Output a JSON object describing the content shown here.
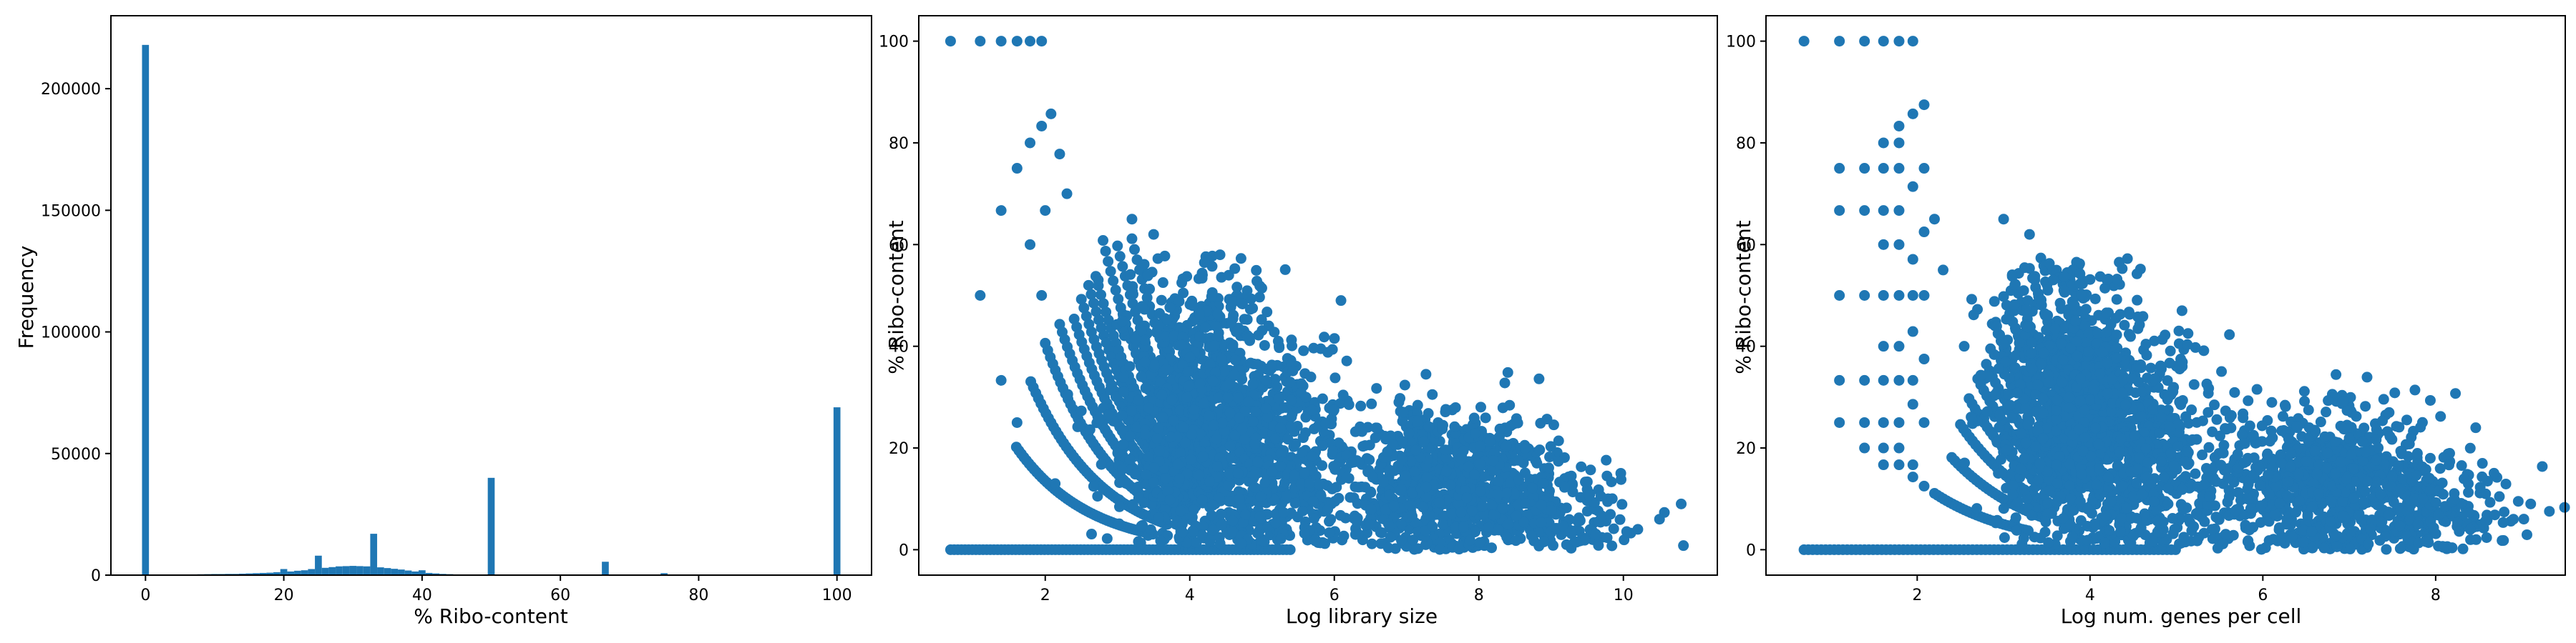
{
  "colors": {
    "series": "#1f77b4"
  },
  "chart_data": [
    {
      "type": "bar",
      "xlabel": "% Ribo-content",
      "ylabel": "Frequency",
      "xlim": [
        -5,
        105
      ],
      "ylim": [
        0,
        230000
      ],
      "xticks": [
        0,
        20,
        40,
        60,
        80,
        100
      ],
      "yticks": [
        0,
        50000,
        100000,
        150000,
        200000
      ],
      "bin_width": 1.0,
      "bars": [
        {
          "x": 0,
          "v": 218000
        },
        {
          "x": 2,
          "v": 200
        },
        {
          "x": 3,
          "v": 200
        },
        {
          "x": 7,
          "v": 300
        },
        {
          "x": 8,
          "v": 350
        },
        {
          "x": 9,
          "v": 400
        },
        {
          "x": 10,
          "v": 450
        },
        {
          "x": 11,
          "v": 450
        },
        {
          "x": 12,
          "v": 500
        },
        {
          "x": 13,
          "v": 500
        },
        {
          "x": 14,
          "v": 600
        },
        {
          "x": 15,
          "v": 700
        },
        {
          "x": 16,
          "v": 800
        },
        {
          "x": 17,
          "v": 900
        },
        {
          "x": 18,
          "v": 1000
        },
        {
          "x": 19,
          "v": 1200
        },
        {
          "x": 20,
          "v": 2500
        },
        {
          "x": 21,
          "v": 1500
        },
        {
          "x": 22,
          "v": 1800
        },
        {
          "x": 23,
          "v": 2000
        },
        {
          "x": 24,
          "v": 2500
        },
        {
          "x": 25,
          "v": 8000
        },
        {
          "x": 26,
          "v": 3000
        },
        {
          "x": 27,
          "v": 3300
        },
        {
          "x": 28,
          "v": 3600
        },
        {
          "x": 29,
          "v": 3700
        },
        {
          "x": 30,
          "v": 3800
        },
        {
          "x": 31,
          "v": 3700
        },
        {
          "x": 32,
          "v": 3600
        },
        {
          "x": 33,
          "v": 17000
        },
        {
          "x": 34,
          "v": 3200
        },
        {
          "x": 35,
          "v": 2900
        },
        {
          "x": 36,
          "v": 2600
        },
        {
          "x": 37,
          "v": 2300
        },
        {
          "x": 38,
          "v": 1900
        },
        {
          "x": 39,
          "v": 1500
        },
        {
          "x": 40,
          "v": 2000
        },
        {
          "x": 41,
          "v": 900
        },
        {
          "x": 42,
          "v": 700
        },
        {
          "x": 43,
          "v": 500
        },
        {
          "x": 44,
          "v": 400
        },
        {
          "x": 45,
          "v": 300
        },
        {
          "x": 46,
          "v": 250
        },
        {
          "x": 47,
          "v": 200
        },
        {
          "x": 48,
          "v": 150
        },
        {
          "x": 50,
          "v": 40000
        },
        {
          "x": 66.5,
          "v": 5500
        },
        {
          "x": 75,
          "v": 800
        },
        {
          "x": 100,
          "v": 69000
        }
      ]
    },
    {
      "type": "scatter",
      "xlabel": "Log library size",
      "ylabel": "% Ribo-content",
      "xlim": [
        0.25,
        11.3
      ],
      "ylim": [
        -5,
        105
      ],
      "xticks": [
        2,
        4,
        6,
        8,
        10
      ],
      "yticks": [
        0,
        20,
        40,
        60,
        80,
        100
      ],
      "top_row": [
        0.69,
        1.1,
        1.39,
        1.61,
        1.79,
        1.95
      ],
      "zero_range": [
        0.69,
        5.4
      ],
      "clusters": [
        {
          "cx": 4.1,
          "cy": 27,
          "sx": 0.55,
          "sy": 13,
          "n": 1100,
          "ymin": 1,
          "ymax": 58
        },
        {
          "cx": 5.1,
          "cy": 18,
          "sx": 0.6,
          "sy": 11,
          "n": 550,
          "ymin": 1,
          "ymax": 50
        },
        {
          "cx": 7.6,
          "cy": 13,
          "sx": 0.75,
          "sy": 7.5,
          "n": 850,
          "ymin": 0,
          "ymax": 40
        },
        {
          "cx": 9.1,
          "cy": 7,
          "sx": 0.55,
          "sy": 5,
          "n": 150,
          "ymin": 0,
          "ymax": 25
        }
      ],
      "outliers": [
        {
          "x": 1.1,
          "y": 50
        },
        {
          "x": 1.39,
          "y": 33.3
        },
        {
          "x": 1.39,
          "y": 66.7
        },
        {
          "x": 1.61,
          "y": 75
        },
        {
          "x": 1.79,
          "y": 80
        },
        {
          "x": 1.79,
          "y": 60
        },
        {
          "x": 1.95,
          "y": 83.3
        },
        {
          "x": 2.08,
          "y": 85.7
        },
        {
          "x": 2.2,
          "y": 77.8
        },
        {
          "x": 2.0,
          "y": 66.7
        },
        {
          "x": 1.95,
          "y": 50
        },
        {
          "x": 2.3,
          "y": 70
        },
        {
          "x": 1.61,
          "y": 25
        },
        {
          "x": 3.2,
          "y": 65
        },
        {
          "x": 3.5,
          "y": 62
        },
        {
          "x": 10.8,
          "y": 9
        },
        {
          "x": 10.5,
          "y": 6
        },
        {
          "x": 10.2,
          "y": 4
        }
      ],
      "curves": [
        {
          "k": 1,
          "x0": 1.6,
          "x1": 3.5
        },
        {
          "k": 2,
          "x0": 1.8,
          "x1": 3.7
        },
        {
          "k": 3,
          "x0": 2.0,
          "x1": 3.9
        },
        {
          "k": 4,
          "x0": 2.2,
          "x1": 4.0
        },
        {
          "k": 5,
          "x0": 2.4,
          "x1": 4.1
        },
        {
          "k": 6,
          "x0": 2.5,
          "x1": 4.2
        },
        {
          "k": 7,
          "x0": 2.6,
          "x1": 4.3
        },
        {
          "k": 8,
          "x0": 2.7,
          "x1": 4.3
        },
        {
          "k": 10,
          "x0": 2.8,
          "x1": 4.4
        },
        {
          "k": 12,
          "x0": 3.0,
          "x1": 4.5
        },
        {
          "k": 15,
          "x0": 3.2,
          "x1": 4.6
        }
      ]
    },
    {
      "type": "scatter",
      "xlabel": "Log num. genes per cell",
      "ylabel": "% Ribo-content",
      "xlim": [
        0.25,
        9.5
      ],
      "ylim": [
        -5,
        105
      ],
      "xticks": [
        2,
        4,
        6,
        8
      ],
      "yticks": [
        0,
        20,
        40,
        60,
        80,
        100
      ],
      "top_row": [
        0.69,
        1.1,
        1.39,
        1.61,
        1.79,
        1.95
      ],
      "zero_range": [
        0.69,
        5.0
      ],
      "columns": [
        {
          "x": 1.1,
          "ys": [
            33.3,
            50,
            66.7,
            75,
            25
          ]
        },
        {
          "x": 1.39,
          "ys": [
            25,
            33.3,
            50,
            66.7,
            75,
            20
          ]
        },
        {
          "x": 1.61,
          "ys": [
            20,
            25,
            33.3,
            40,
            50,
            60,
            66.7,
            75,
            80,
            16.7
          ]
        },
        {
          "x": 1.79,
          "ys": [
            16.7,
            20,
            25,
            33.3,
            40,
            50,
            60,
            66.7,
            75,
            80,
            83.3
          ]
        },
        {
          "x": 1.95,
          "ys": [
            14.3,
            16.7,
            28.6,
            42.9,
            57.1,
            71.4,
            85.7,
            33.3,
            50
          ]
        },
        {
          "x": 2.08,
          "ys": [
            12.5,
            25,
            37.5,
            50,
            62.5,
            75,
            87.5
          ]
        }
      ],
      "clusters": [
        {
          "cx": 3.8,
          "cy": 28,
          "sx": 0.45,
          "sy": 13,
          "n": 1100,
          "ymin": 1,
          "ymax": 58
        },
        {
          "cx": 4.6,
          "cy": 18,
          "sx": 0.5,
          "sy": 11,
          "n": 550,
          "ymin": 1,
          "ymax": 50
        },
        {
          "cx": 6.8,
          "cy": 13,
          "sx": 0.65,
          "sy": 7.5,
          "n": 850,
          "ymin": 0,
          "ymax": 40
        },
        {
          "cx": 8.0,
          "cy": 7,
          "sx": 0.45,
          "sy": 5,
          "n": 150,
          "ymin": 0,
          "ymax": 25
        }
      ],
      "outliers": [
        {
          "x": 2.2,
          "y": 65
        },
        {
          "x": 2.3,
          "y": 55
        },
        {
          "x": 3.0,
          "y": 65
        },
        {
          "x": 3.3,
          "y": 62
        },
        {
          "x": 9.1,
          "y": 9
        },
        {
          "x": 8.9,
          "y": 6
        }
      ],
      "curves": [
        {
          "k": 1,
          "x0": 2.2,
          "x1": 3.3
        },
        {
          "k": 2,
          "x0": 2.4,
          "x1": 3.5
        },
        {
          "k": 3,
          "x0": 2.5,
          "x1": 3.6
        },
        {
          "k": 4,
          "x0": 2.6,
          "x1": 3.7
        },
        {
          "k": 5,
          "x0": 2.7,
          "x1": 3.8
        },
        {
          "k": 6,
          "x0": 2.8,
          "x1": 3.9
        },
        {
          "k": 8,
          "x0": 2.9,
          "x1": 4.0
        },
        {
          "k": 10,
          "x0": 3.0,
          "x1": 4.1
        },
        {
          "k": 12,
          "x0": 3.1,
          "x1": 4.2
        },
        {
          "k": 15,
          "x0": 3.3,
          "x1": 4.3
        }
      ]
    }
  ]
}
